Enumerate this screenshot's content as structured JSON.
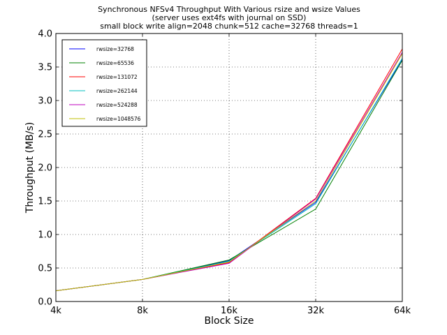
{
  "chart_data": {
    "type": "line",
    "title_lines": [
      "Synchronous NFSv4 Throughput With Various rsize and wsize Values",
      "(server uses ext4fs with journal on SSD)",
      "small block write align=2048 chunk=512 cache=32768 threads=1"
    ],
    "xlabel": "Block Size",
    "ylabel": "Throughput (MB/s)",
    "x": [
      "4k",
      "8k",
      "16k",
      "32k",
      "64k"
    ],
    "ylim": [
      0,
      4.0
    ],
    "yticks": [
      "0.0",
      "0.5",
      "1.0",
      "1.5",
      "2.0",
      "2.5",
      "3.0",
      "3.5",
      "4.0"
    ],
    "grid": true,
    "legend_position": "top-left",
    "series": [
      {
        "name": "rwsize=32768",
        "color": "#0000ff",
        "values": [
          0.16,
          0.33,
          0.61,
          1.48,
          3.61
        ]
      },
      {
        "name": "rwsize=65536",
        "color": "#008000",
        "values": [
          0.16,
          0.33,
          0.62,
          1.38,
          3.6
        ]
      },
      {
        "name": "rwsize=131072",
        "color": "#ff0000",
        "values": [
          0.16,
          0.33,
          0.58,
          1.54,
          3.77
        ]
      },
      {
        "name": "rwsize=262144",
        "color": "#00bfbf",
        "values": [
          0.16,
          0.33,
          0.6,
          1.46,
          3.63
        ]
      },
      {
        "name": "rwsize=524288",
        "color": "#bf00bf",
        "values": [
          0.16,
          0.33,
          0.57,
          1.53,
          3.72
        ]
      },
      {
        "name": "rwsize=1048576",
        "color": "#bfbf00",
        "values": [
          0.16,
          0.33,
          0.59,
          1.5,
          3.7
        ]
      }
    ]
  }
}
